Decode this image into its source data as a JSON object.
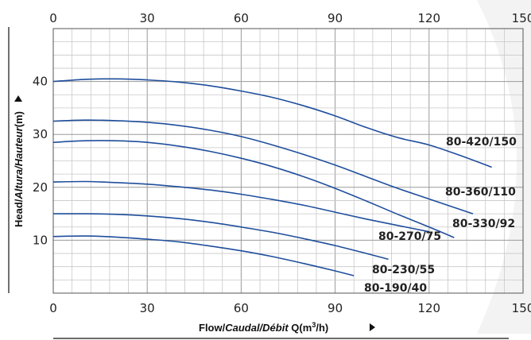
{
  "chart_data": {
    "type": "line",
    "title": "",
    "xlabel": {
      "parts": [
        "Flow/",
        "Caudal/Débit",
        " Q(m",
        "3",
        "/h)"
      ]
    },
    "ylabel": {
      "parts": [
        "Head/",
        "Altura/Hauteur",
        "(m)"
      ]
    },
    "xlim": [
      0,
      150
    ],
    "ylim": [
      0,
      50
    ],
    "x_ticks": [
      "0",
      "30",
      "60",
      "90",
      "120",
      "150"
    ],
    "y_ticks": [
      "10",
      "20",
      "30",
      "40"
    ],
    "grid": true,
    "line_color": "#1f4e9c",
    "series": [
      {
        "name": "80-420/150",
        "x": [
          0,
          10,
          20,
          30,
          40,
          50,
          60,
          70,
          80,
          90,
          100,
          110,
          120,
          130,
          140
        ],
        "y": [
          40.0,
          40.4,
          40.5,
          40.3,
          39.9,
          39.2,
          38.2,
          37.0,
          35.4,
          33.5,
          31.3,
          29.4,
          28.0,
          26.0,
          23.8
        ]
      },
      {
        "name": "80-360/110",
        "x": [
          0,
          10,
          20,
          30,
          40,
          50,
          60,
          70,
          80,
          90,
          100,
          110,
          120,
          134
        ],
        "y": [
          32.5,
          32.7,
          32.6,
          32.3,
          31.7,
          30.8,
          29.6,
          28.0,
          26.2,
          24.2,
          22.0,
          19.8,
          17.8,
          15.0
        ]
      },
      {
        "name": "80-330/92",
        "x": [
          0,
          10,
          20,
          30,
          40,
          50,
          60,
          70,
          80,
          90,
          100,
          110,
          120,
          128
        ],
        "y": [
          28.5,
          28.8,
          28.8,
          28.5,
          27.8,
          26.8,
          25.5,
          23.9,
          22.0,
          19.8,
          17.4,
          14.9,
          12.5,
          10.5
        ]
      },
      {
        "name": "80-270/75",
        "x": [
          0,
          10,
          20,
          30,
          40,
          50,
          60,
          70,
          80,
          90,
          100,
          110,
          120
        ],
        "y": [
          21.0,
          21.1,
          20.9,
          20.6,
          20.1,
          19.5,
          18.7,
          17.7,
          16.6,
          15.3,
          14.0,
          12.8,
          11.6
        ]
      },
      {
        "name": "80-230/55",
        "x": [
          0,
          10,
          20,
          30,
          40,
          50,
          60,
          70,
          80,
          90,
          100,
          107
        ],
        "y": [
          15.0,
          15.0,
          14.9,
          14.6,
          14.1,
          13.4,
          12.5,
          11.5,
          10.3,
          9.0,
          7.5,
          6.4
        ]
      },
      {
        "name": "80-190/40",
        "x": [
          0,
          10,
          20,
          30,
          40,
          50,
          60,
          70,
          80,
          90,
          96
        ],
        "y": [
          10.7,
          10.8,
          10.6,
          10.2,
          9.7,
          8.9,
          8.0,
          6.9,
          5.6,
          4.2,
          3.3
        ]
      }
    ],
    "labels": [
      "80-420/150",
      "80-360/110",
      "80-330/92",
      "80-270/75",
      "80-230/55",
      "80-190/40"
    ]
  }
}
